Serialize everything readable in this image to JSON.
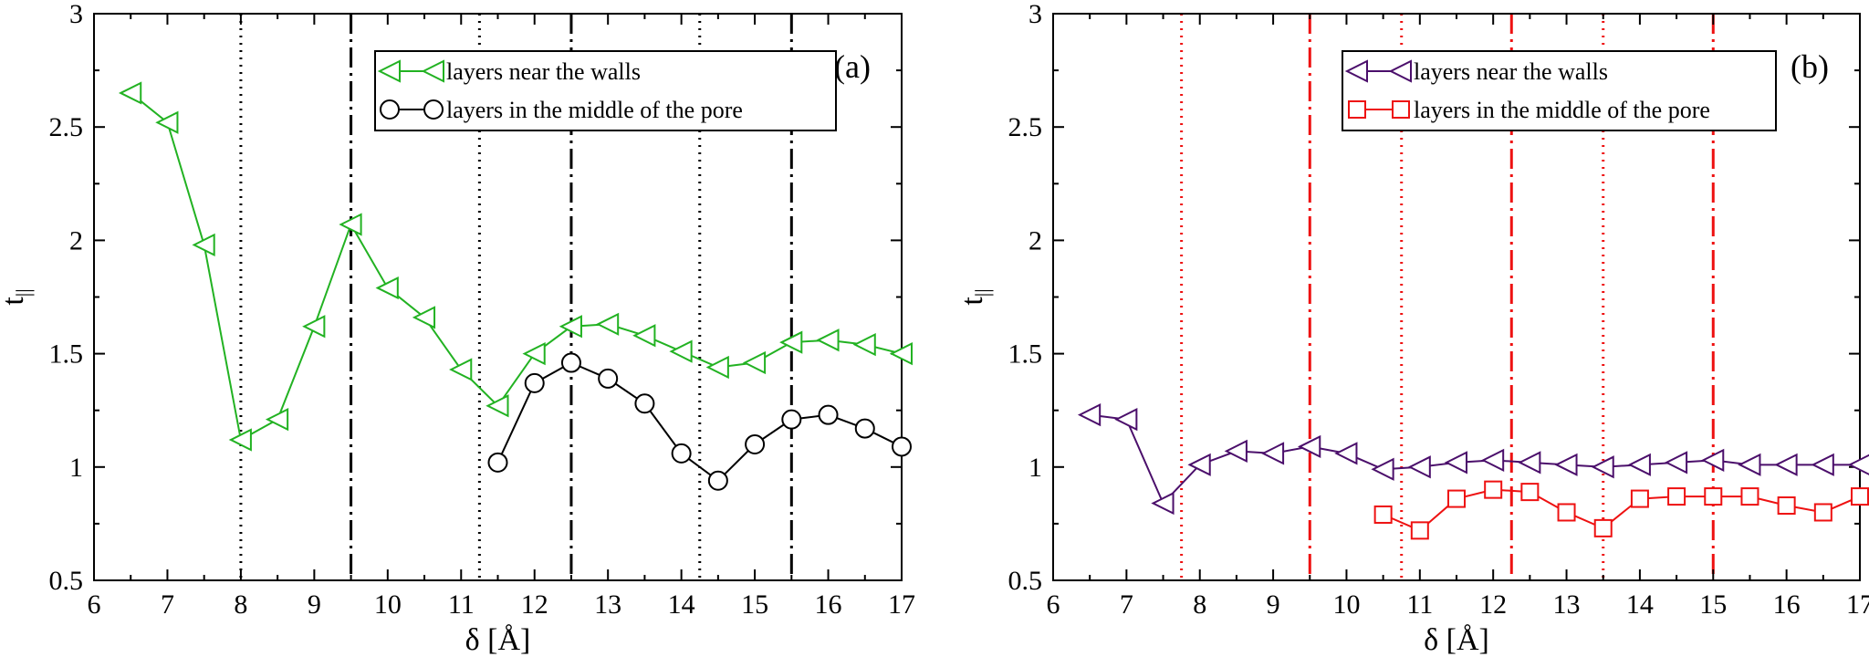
{
  "chart_data": [
    {
      "type": "line",
      "panel_label": "(a)",
      "xlabel": "δ  [Å]",
      "ylabel": "t",
      "ylabel_subscript": "||",
      "xlim": [
        6,
        17
      ],
      "ylim": [
        0.5,
        3
      ],
      "x_ticks": [
        6,
        7,
        8,
        9,
        10,
        11,
        12,
        13,
        14,
        15,
        16,
        17
      ],
      "y_ticks": [
        0.5,
        1,
        1.5,
        2,
        2.5,
        3
      ],
      "y_tick_labels": [
        "0.5",
        "1",
        "1.5",
        "2",
        "2.5",
        "3"
      ],
      "grid": false,
      "legend_position": "top-right",
      "series": [
        {
          "name": "layers near the walls",
          "color": "#22b222",
          "marker": "triangle-left",
          "x": [
            6.5,
            7,
            7.5,
            8,
            8.5,
            9,
            9.5,
            10,
            10.5,
            11,
            11.5,
            12,
            12.5,
            13,
            13.5,
            14,
            14.5,
            15,
            15.5,
            16,
            16.5,
            17
          ],
          "y": [
            2.65,
            2.52,
            1.98,
            1.12,
            1.21,
            1.62,
            2.07,
            1.79,
            1.66,
            1.43,
            1.27,
            1.5,
            1.62,
            1.63,
            1.58,
            1.51,
            1.44,
            1.46,
            1.55,
            1.56,
            1.54,
            1.5
          ]
        },
        {
          "name": "layers in the middle of the pore",
          "color": "#000000",
          "marker": "circle",
          "x": [
            11.5,
            12,
            12.5,
            13,
            13.5,
            14,
            14.5,
            15,
            15.5,
            16,
            16.5,
            17
          ],
          "y": [
            1.02,
            1.37,
            1.46,
            1.39,
            1.28,
            1.06,
            0.94,
            1.1,
            1.21,
            1.23,
            1.17,
            1.09
          ]
        }
      ],
      "vertical_lines": [
        {
          "x": 8,
          "style": "dotted",
          "color": "#000000"
        },
        {
          "x": 9.5,
          "style": "dashdot",
          "color": "#000000"
        },
        {
          "x": 11.25,
          "style": "dotted",
          "color": "#000000"
        },
        {
          "x": 12.5,
          "style": "dashdot",
          "color": "#000000"
        },
        {
          "x": 14.25,
          "style": "dotted",
          "color": "#000000"
        },
        {
          "x": 15.5,
          "style": "dashdot",
          "color": "#000000"
        }
      ]
    },
    {
      "type": "line",
      "panel_label": "(b)",
      "xlabel": "δ  [Å]",
      "ylabel": "t",
      "ylabel_subscript": "||",
      "xlim": [
        6,
        17
      ],
      "ylim": [
        0.5,
        3
      ],
      "x_ticks": [
        6,
        7,
        8,
        9,
        10,
        11,
        12,
        13,
        14,
        15,
        16,
        17
      ],
      "y_ticks": [
        0.5,
        1,
        1.5,
        2,
        2.5,
        3
      ],
      "y_tick_labels": [
        "0.5",
        "1",
        "1.5",
        "2",
        "2.5",
        "3"
      ],
      "grid": false,
      "legend_position": "top-right",
      "series": [
        {
          "name": "layers near the walls",
          "color": "#4b0f6b",
          "marker": "triangle-left",
          "x": [
            6.5,
            7,
            7.5,
            8,
            8.5,
            9,
            9.5,
            10,
            10.5,
            11,
            11.5,
            12,
            12.5,
            13,
            13.5,
            14,
            14.5,
            15,
            15.5,
            16,
            16.5,
            17
          ],
          "y": [
            1.23,
            1.21,
            0.84,
            1.01,
            1.07,
            1.06,
            1.09,
            1.06,
            0.99,
            1.0,
            1.02,
            1.03,
            1.02,
            1.01,
            1.0,
            1.01,
            1.02,
            1.03,
            1.01,
            1.01,
            1.01,
            1.01
          ]
        },
        {
          "name": "layers in the middle of the pore",
          "color": "#ee1111",
          "marker": "square",
          "x": [
            10.5,
            11,
            11.5,
            12,
            12.5,
            13,
            13.5,
            14,
            14.5,
            15,
            15.5,
            16,
            16.5,
            17
          ],
          "y": [
            0.79,
            0.72,
            0.86,
            0.9,
            0.89,
            0.8,
            0.73,
            0.86,
            0.87,
            0.87,
            0.87,
            0.83,
            0.8,
            0.87
          ]
        }
      ],
      "vertical_lines": [
        {
          "x": 7.75,
          "style": "dotted",
          "color": "#ee1111"
        },
        {
          "x": 9.5,
          "style": "dashdot",
          "color": "#ee1111"
        },
        {
          "x": 10.75,
          "style": "dotted",
          "color": "#ee1111"
        },
        {
          "x": 12.25,
          "style": "dashdot",
          "color": "#ee1111"
        },
        {
          "x": 13.5,
          "style": "dotted",
          "color": "#ee1111"
        },
        {
          "x": 15,
          "style": "dashdot",
          "color": "#ee1111"
        }
      ]
    }
  ]
}
